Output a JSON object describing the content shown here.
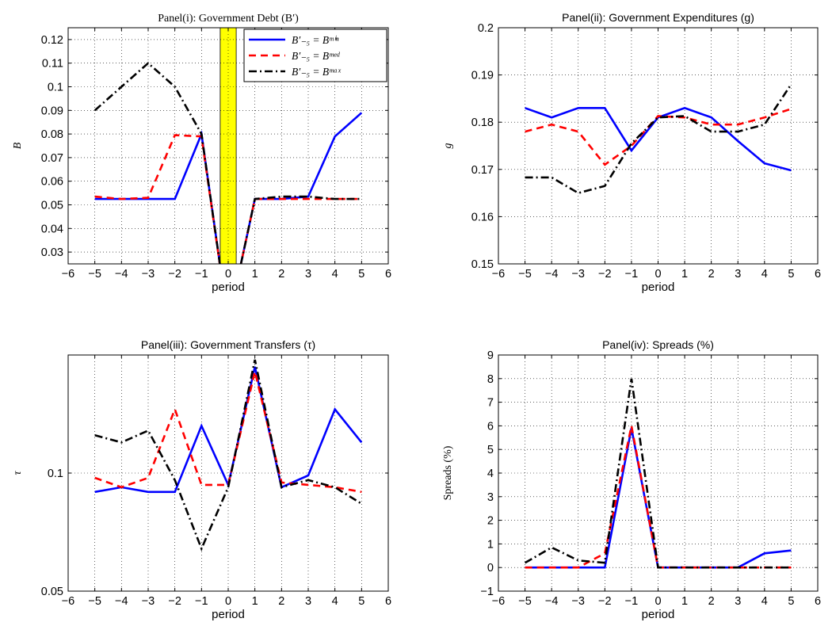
{
  "figure": {
    "legend": [
      {
        "label": "B′₋₅ = Bᵐⁱⁿ",
        "color": "#0000ff",
        "dash": "solid"
      },
      {
        "label": "B′₋₅ = Bᵐᵉᵈ",
        "color": "#ff0000",
        "dash": "dashed"
      },
      {
        "label": "B′₋₅ = Bᵐᵃˣ",
        "color": "#000000",
        "dash": "dashdot"
      }
    ]
  },
  "chart_data": [
    {
      "type": "line",
      "title": "Panel(i): Government Debt (B′)",
      "xlabel": "period",
      "ylabel": "B",
      "xlim": [
        -6,
        6
      ],
      "ylim": [
        0.025,
        0.125
      ],
      "xticks": [
        -6,
        -5,
        -4,
        -3,
        -2,
        -1,
        0,
        1,
        2,
        3,
        4,
        5,
        6
      ],
      "yticks": [
        0.03,
        0.04,
        0.05,
        0.06,
        0.07,
        0.08,
        0.09,
        0.1,
        0.11,
        0.12
      ],
      "ytick_labels": [
        "0.03",
        "0.04",
        "0.05",
        "0.06",
        "0.07",
        "0.08",
        "0.09",
        "0.1",
        "0.11",
        "0.12"
      ],
      "grid": true,
      "legend_position": "top-right",
      "highlight_band": {
        "x0": -0.3,
        "x1": 0.3,
        "color": "#ffff00"
      },
      "x": [
        -5,
        -4,
        -3,
        -2,
        -1,
        0,
        1,
        2,
        3,
        4,
        5
      ],
      "series": [
        {
          "name": "B′₋₅ = Bᵐⁱⁿ",
          "values": [
            0.0525,
            0.0525,
            0.0525,
            0.0525,
            0.08,
            0.0,
            0.0525,
            0.0525,
            0.0535,
            0.079,
            0.089
          ]
        },
        {
          "name": "B′₋₅ = Bᵐᵉᵈ",
          "values": [
            0.0535,
            0.0525,
            0.053,
            0.0795,
            0.079,
            0.0,
            0.0525,
            0.0525,
            0.0525,
            0.0525,
            0.0525
          ]
        },
        {
          "name": "B′₋₅ = Bᵐᵃˣ",
          "values": [
            0.09,
            0.1,
            0.11,
            0.1,
            0.08,
            0.0,
            0.0525,
            0.0535,
            0.0535,
            0.0525,
            0.0525
          ]
        }
      ]
    },
    {
      "type": "line",
      "title": "Panel(ii): Government Expenditures (g)",
      "xlabel": "period",
      "ylabel": "g",
      "xlim": [
        -6,
        6
      ],
      "ylim": [
        0.15,
        0.2
      ],
      "xticks": [
        -6,
        -5,
        -4,
        -3,
        -2,
        -1,
        0,
        1,
        2,
        3,
        4,
        5,
        6
      ],
      "yticks": [
        0.15,
        0.16,
        0.17,
        0.18,
        0.19,
        0.2
      ],
      "ytick_labels": [
        "0.15",
        "0.16",
        "0.17",
        "0.18",
        "0.19",
        "0.2"
      ],
      "grid": true,
      "x": [
        -5,
        -4,
        -3,
        -2,
        -1,
        0,
        1,
        2,
        3,
        4,
        5
      ],
      "series": [
        {
          "name": "B′₋₅ = Bᵐⁱⁿ",
          "values": [
            0.183,
            0.181,
            0.183,
            0.183,
            0.174,
            0.181,
            0.183,
            0.181,
            0.176,
            0.1713,
            0.1698
          ]
        },
        {
          "name": "B′₋₅ = Bᵐᵉᵈ",
          "values": [
            0.178,
            0.1795,
            0.178,
            0.171,
            0.175,
            0.1813,
            0.181,
            0.1795,
            0.1795,
            0.181,
            0.1828
          ]
        },
        {
          "name": "B′₋₅ = Bᵐᵃˣ",
          "values": [
            0.1683,
            0.1683,
            0.165,
            0.1665,
            0.1755,
            0.181,
            0.1813,
            0.178,
            0.178,
            0.1795,
            0.188
          ]
        }
      ]
    },
    {
      "type": "line",
      "title": "Panel(iii): Government Transfers (τ)",
      "xlabel": "period",
      "ylabel": "τ",
      "xlim": [
        -6,
        6
      ],
      "ylim": [
        0.05,
        0.15
      ],
      "xticks": [
        -6,
        -5,
        -4,
        -3,
        -2,
        -1,
        0,
        1,
        2,
        3,
        4,
        5,
        6
      ],
      "yticks": [
        0.05,
        0.1
      ],
      "ytick_labels": [
        "0.05",
        "0.1"
      ],
      "grid": true,
      "x": [
        -5,
        -4,
        -3,
        -2,
        -1,
        0,
        1,
        2,
        3,
        4,
        5
      ],
      "series": [
        {
          "name": "B′₋₅ = Bᵐⁱⁿ",
          "values": [
            0.092,
            0.094,
            0.092,
            0.092,
            0.12,
            0.095,
            0.145,
            0.094,
            0.099,
            0.127,
            0.113
          ]
        },
        {
          "name": "B′₋₅ = Bᵐᵉᵈ",
          "values": [
            0.098,
            0.094,
            0.098,
            0.127,
            0.095,
            0.095,
            0.143,
            0.096,
            0.095,
            0.094,
            0.092
          ]
        },
        {
          "name": "B′₋₅ = Bᵐᵃˣ",
          "values": [
            0.116,
            0.113,
            0.118,
            0.097,
            0.068,
            0.094,
            0.148,
            0.094,
            0.097,
            0.094,
            0.087
          ]
        }
      ]
    },
    {
      "type": "line",
      "title": "Panel(iv): Spreads (%)",
      "xlabel": "period",
      "ylabel": "Spreads (%)",
      "xlim": [
        -6,
        6
      ],
      "ylim": [
        -1,
        9
      ],
      "xticks": [
        -6,
        -5,
        -4,
        -3,
        -2,
        -1,
        0,
        1,
        2,
        3,
        4,
        5,
        6
      ],
      "yticks": [
        -1,
        0,
        1,
        2,
        3,
        4,
        5,
        6,
        7,
        8,
        9
      ],
      "ytick_labels": [
        "−1",
        "0",
        "1",
        "2",
        "3",
        "4",
        "5",
        "6",
        "7",
        "8",
        "9"
      ],
      "grid": true,
      "x": [
        -5,
        -4,
        -3,
        -2,
        -1,
        0,
        1,
        2,
        3,
        4,
        5
      ],
      "series": [
        {
          "name": "B′₋₅ = Bᵐⁱⁿ",
          "values": [
            0,
            0,
            0,
            0,
            5.9,
            0,
            0,
            0,
            0,
            0.6,
            0.72
          ]
        },
        {
          "name": "B′₋₅ = Bᵐᵉᵈ",
          "values": [
            0,
            0,
            0,
            0.6,
            6.0,
            0,
            0,
            0,
            0,
            0,
            0
          ]
        },
        {
          "name": "B′₋₅ = Bᵐᵃˣ",
          "values": [
            0.2,
            0.85,
            0.3,
            0.2,
            8.0,
            0,
            0,
            0,
            0,
            0,
            0
          ]
        }
      ]
    }
  ]
}
